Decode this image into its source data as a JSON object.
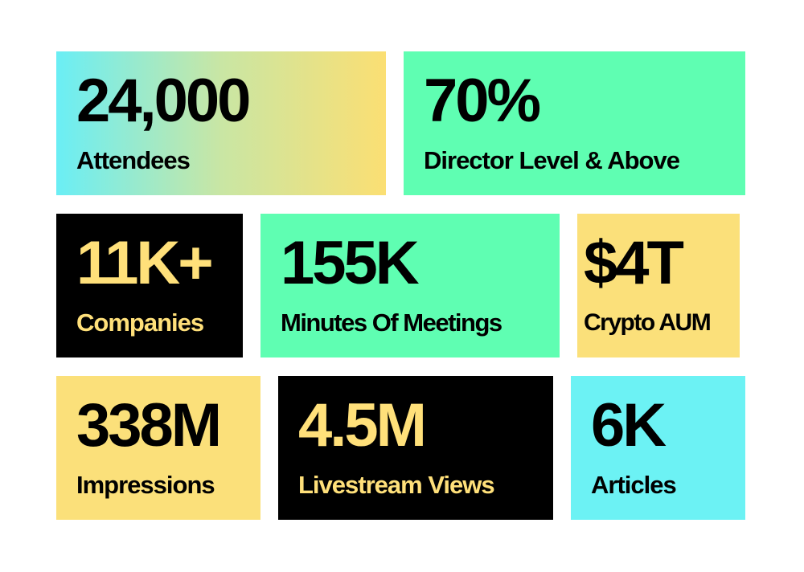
{
  "stats": [
    {
      "value": "24,000",
      "label": "Attendees"
    },
    {
      "value": "70%",
      "label": "Director Level & Above"
    },
    {
      "value": "11K+",
      "label": "Companies"
    },
    {
      "value": "155K",
      "label": "Minutes Of Meetings"
    },
    {
      "value": "$4T",
      "label": "Crypto AUM"
    },
    {
      "value": "338M",
      "label": "Impressions"
    },
    {
      "value": "4.5M",
      "label": "Livestream Views"
    },
    {
      "value": "6K",
      "label": "Articles"
    }
  ],
  "colors": {
    "black": "#000000",
    "accent_yellow": "#fbe07a",
    "green": "#5ffeb2",
    "cyan": "#6cf2f4",
    "gradient_start": "#6aeef5",
    "gradient_end": "#fbdf73"
  }
}
